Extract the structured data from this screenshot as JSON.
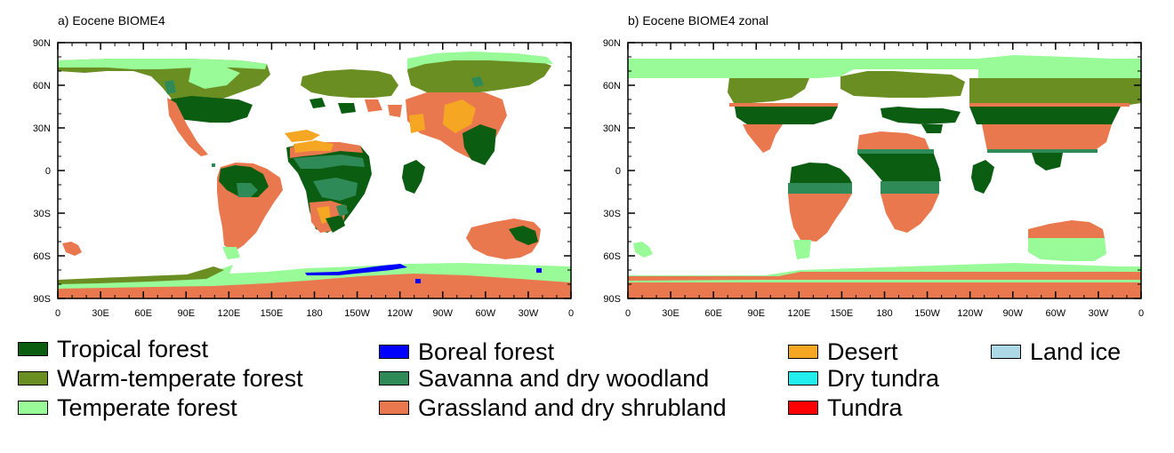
{
  "panels": [
    {
      "title": "a) Eocene BIOME4",
      "x_ticks": [
        "0",
        "30E",
        "60E",
        "90E",
        "120E",
        "150E",
        "180",
        "150W",
        "120W",
        "90W",
        "60W",
        "30W",
        "0"
      ],
      "y_ticks": [
        "90N",
        "60N",
        "30N",
        "0",
        "30S",
        "60S",
        "90S"
      ]
    },
    {
      "title": "b) Eocene BIOME4 zonal",
      "x_ticks": [
        "0",
        "30E",
        "60E",
        "90E",
        "120E",
        "150E",
        "180",
        "150W",
        "120W",
        "90W",
        "60W",
        "30W",
        "0"
      ],
      "y_ticks": [
        "90N",
        "60N",
        "30N",
        "0",
        "30S",
        "60S",
        "90S"
      ]
    }
  ],
  "legend": [
    {
      "label": "Tropical forest",
      "color": "#0b5d12"
    },
    {
      "label": "Warm-temperate forest",
      "color": "#6b8e23"
    },
    {
      "label": "Temperate forest",
      "color": "#98fb98"
    },
    {
      "label": "Boreal forest",
      "color": "#0000ff"
    },
    {
      "label": "Savanna and dry woodland",
      "color": "#2e8b57"
    },
    {
      "label": "Grassland and dry shrubland",
      "color": "#e9784f"
    },
    {
      "label": "Desert",
      "color": "#f5a623"
    },
    {
      "label": "Dry tundra",
      "color": "#22eeee"
    },
    {
      "label": "Tundra",
      "color": "#ff0000"
    },
    {
      "label": "Land ice",
      "color": "#add8e6"
    }
  ]
}
